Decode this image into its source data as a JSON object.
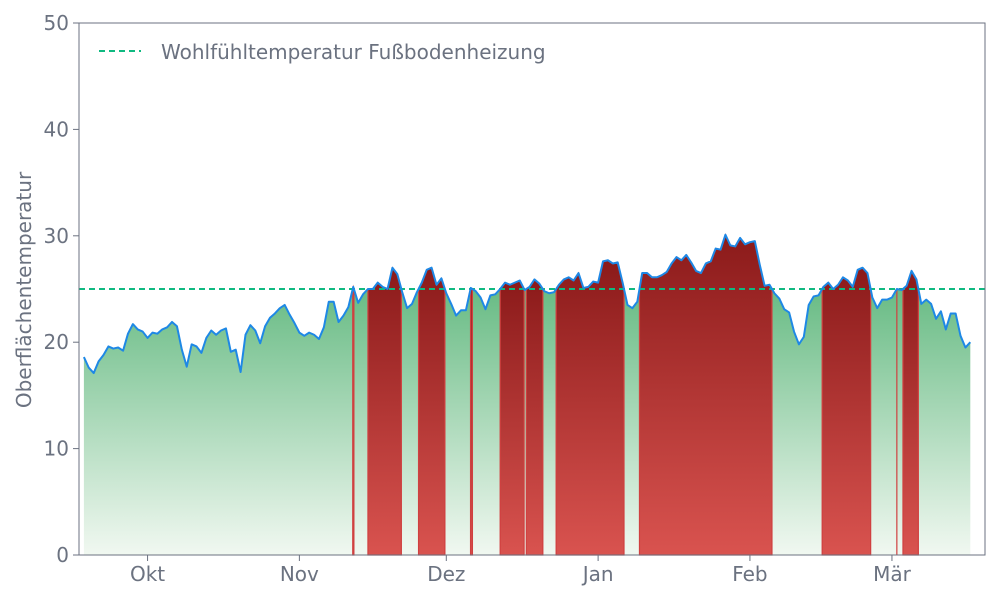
{
  "chart_data": {
    "type": "area",
    "title": "",
    "xlabel": "",
    "ylabel": "Oberflächentemperatur",
    "ylim": [
      0,
      50
    ],
    "yticks": [
      0,
      10,
      20,
      30,
      40,
      50
    ],
    "x_start": "2023-09-17",
    "x_end": "2024-03-20",
    "xticks": [
      {
        "date": "2023-10-01",
        "label": "Okt"
      },
      {
        "date": "2023-11-01",
        "label": "Nov"
      },
      {
        "date": "2023-12-01",
        "label": "Dez"
      },
      {
        "date": "2024-01-01",
        "label": "Jan"
      },
      {
        "date": "2024-02-01",
        "label": "Feb"
      },
      {
        "date": "2024-03-01",
        "label": "Mär"
      }
    ],
    "threshold": {
      "value": 25,
      "label": "Wohlfühltemperatur Fußbodenheizung",
      "color": "#10b981"
    },
    "legend_position": "top-left",
    "grid": false,
    "colors": {
      "line": "#1e88e5",
      "below_top": "#4caf6e",
      "below_bottom": "#f1f8f1",
      "above_top": "#8b1a1a",
      "above_bottom": "#d9534f",
      "above_edge": "#d04040"
    },
    "series": [
      {
        "name": "",
        "x_start": "2023-09-18",
        "step_days": 1,
        "values": [
          18.6,
          17.6,
          17.1,
          18.2,
          18.8,
          19.6,
          19.4,
          19.5,
          19.2,
          20.8,
          21.7,
          21.2,
          21.0,
          20.4,
          20.9,
          20.8,
          21.2,
          21.4,
          21.9,
          21.5,
          19.3,
          17.7,
          19.8,
          19.6,
          19.0,
          20.4,
          21.1,
          20.7,
          21.1,
          21.3,
          19.1,
          19.3,
          17.2,
          20.7,
          21.6,
          21.1,
          19.9,
          21.5,
          22.3,
          22.7,
          23.2,
          23.5,
          22.6,
          21.8,
          20.9,
          20.6,
          20.9,
          20.7,
          20.3,
          21.4,
          23.8,
          23.8,
          21.9,
          22.5,
          23.3,
          25.2,
          23.7,
          24.5,
          25.0,
          25.0,
          25.6,
          25.2,
          25.0,
          27.0,
          26.4,
          24.7,
          23.2,
          23.6,
          24.7,
          25.6,
          26.8,
          27.0,
          25.4,
          26.0,
          24.6,
          23.6,
          22.5,
          23.0,
          23.0,
          25.1,
          24.8,
          24.2,
          23.1,
          24.4,
          24.5,
          25.0,
          25.6,
          25.4,
          25.6,
          25.8,
          24.9,
          25.2,
          25.9,
          25.5,
          24.8,
          24.6,
          24.7,
          25.4,
          25.9,
          26.1,
          25.8,
          26.5,
          25.1,
          25.2,
          25.7,
          25.6,
          27.6,
          27.7,
          27.4,
          27.5,
          25.6,
          23.5,
          23.2,
          23.8,
          26.5,
          26.5,
          26.1,
          26.1,
          26.3,
          26.6,
          27.4,
          28.0,
          27.7,
          28.2,
          27.5,
          26.7,
          26.5,
          27.4,
          27.6,
          28.8,
          28.7,
          30.1,
          29.1,
          29.0,
          29.8,
          29.2,
          29.4,
          29.5,
          27.3,
          25.3,
          25.4,
          24.6,
          24.1,
          23.1,
          22.8,
          21.0,
          19.8,
          20.5,
          23.5,
          24.3,
          24.4,
          25.2,
          25.6,
          25.0,
          25.4,
          26.1,
          25.8,
          25.2,
          26.8,
          27.0,
          26.5,
          24.2,
          23.2,
          24.0,
          24.0,
          24.2,
          25.0,
          24.9,
          25.3,
          26.7,
          25.9,
          23.6,
          24.0,
          23.6,
          22.2,
          22.9,
          21.2,
          22.7,
          22.7,
          20.6,
          19.5,
          20.0
        ]
      }
    ]
  }
}
